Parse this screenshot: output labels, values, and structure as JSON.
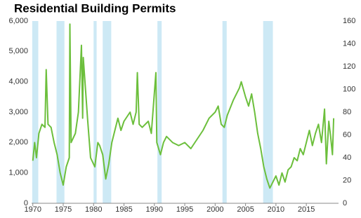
{
  "chart_data": {
    "type": "line",
    "title": "Residential Building Permits",
    "x": [
      1970,
      1970.3,
      1970.6,
      1971,
      1971.5,
      1972,
      1972.2,
      1972.5,
      1973,
      1973.5,
      1974,
      1974.5,
      1975,
      1975.5,
      1976,
      1976.1,
      1976.3,
      1977,
      1977.5,
      1978,
      1978.2,
      1978.3,
      1979,
      1979.5,
      1980.2,
      1980.7,
      1981,
      1981.5,
      1982,
      1982.5,
      1983,
      1983.5,
      1984,
      1984.5,
      1985,
      1986,
      1986.5,
      1987,
      1987.2,
      1987.5,
      1988,
      1989,
      1989.5,
      1990.25,
      1990.4,
      1991,
      1991.5,
      1992,
      1993,
      1994,
      1995,
      1996,
      1997,
      1998,
      1999,
      2000,
      2000.5,
      2001,
      2001.5,
      2002,
      2003,
      2004,
      2004.3,
      2005,
      2005.5,
      2006,
      2006.5,
      2007,
      2007.5,
      2008,
      2008.5,
      2009,
      2009.5,
      2010,
      2010.5,
      2011,
      2011.5,
      2012,
      2012.5,
      2013,
      2013.5,
      2014,
      2014.5,
      2015,
      2015.5,
      2016,
      2016.5,
      2017,
      2017.5,
      2018,
      2018.3,
      2018.7,
      2019,
      2019.3,
      2019.5
    ],
    "series": [
      {
        "color": "#6cbf3c",
        "values": [
          1400,
          2000,
          1500,
          2300,
          2600,
          2500,
          4400,
          2600,
          2500,
          2000,
          1600,
          1000,
          600,
          1200,
          1500,
          5900,
          2000,
          2300,
          3000,
          5200,
          2800,
          4800,
          2800,
          1500,
          1200,
          2000,
          1900,
          1600,
          800,
          1300,
          2000,
          2400,
          2800,
          2400,
          2700,
          3000,
          2600,
          3000,
          4300,
          2600,
          2500,
          2700,
          2300,
          4300,
          2000,
          1600,
          2000,
          2200,
          2000,
          1900,
          2000,
          1800,
          2100,
          2400,
          2800,
          3000,
          3200,
          2600,
          2500,
          2900,
          3400,
          3800,
          4000,
          3500,
          3200,
          3600,
          3000,
          2300,
          1800,
          1200,
          800,
          500,
          700,
          900,
          600,
          1000,
          700,
          1100,
          1200,
          1500,
          1400,
          1800,
          1600,
          2000,
          2400,
          1900,
          2300,
          2600,
          2000,
          3100,
          1300,
          2700,
          2200,
          1600,
          2800
        ]
      }
    ],
    "recessions": {
      "color": "#cde9f5",
      "periods": [
        [
          1969.9,
          1970.9
        ],
        [
          1973.9,
          1975.2
        ],
        [
          1980.0,
          1980.5
        ],
        [
          1981.5,
          1982.9
        ],
        [
          1990.5,
          1991.2
        ],
        [
          2001.2,
          2001.9
        ],
        [
          2007.9,
          2009.5
        ]
      ]
    },
    "xlim": [
      1969.8,
      2020.3
    ],
    "xticks": [
      1970,
      1975,
      1980,
      1985,
      1990,
      1995,
      2000,
      2005,
      2010,
      2015
    ],
    "ylim": [
      0,
      6000
    ],
    "yticks": [
      0,
      {
        "value": 1000,
        "label": "1,000"
      },
      {
        "value": 2000,
        "label": "2,000"
      },
      {
        "value": 3000,
        "label": "3,000"
      },
      {
        "value": 4000,
        "label": "4,000"
      },
      {
        "value": 5000,
        "label": "5,000"
      },
      {
        "value": 6000,
        "label": "6,000"
      }
    ],
    "y2lim": [
      0,
      160
    ],
    "y2ticks": [
      0,
      20,
      40,
      60,
      80,
      100,
      120,
      140,
      160
    ]
  }
}
